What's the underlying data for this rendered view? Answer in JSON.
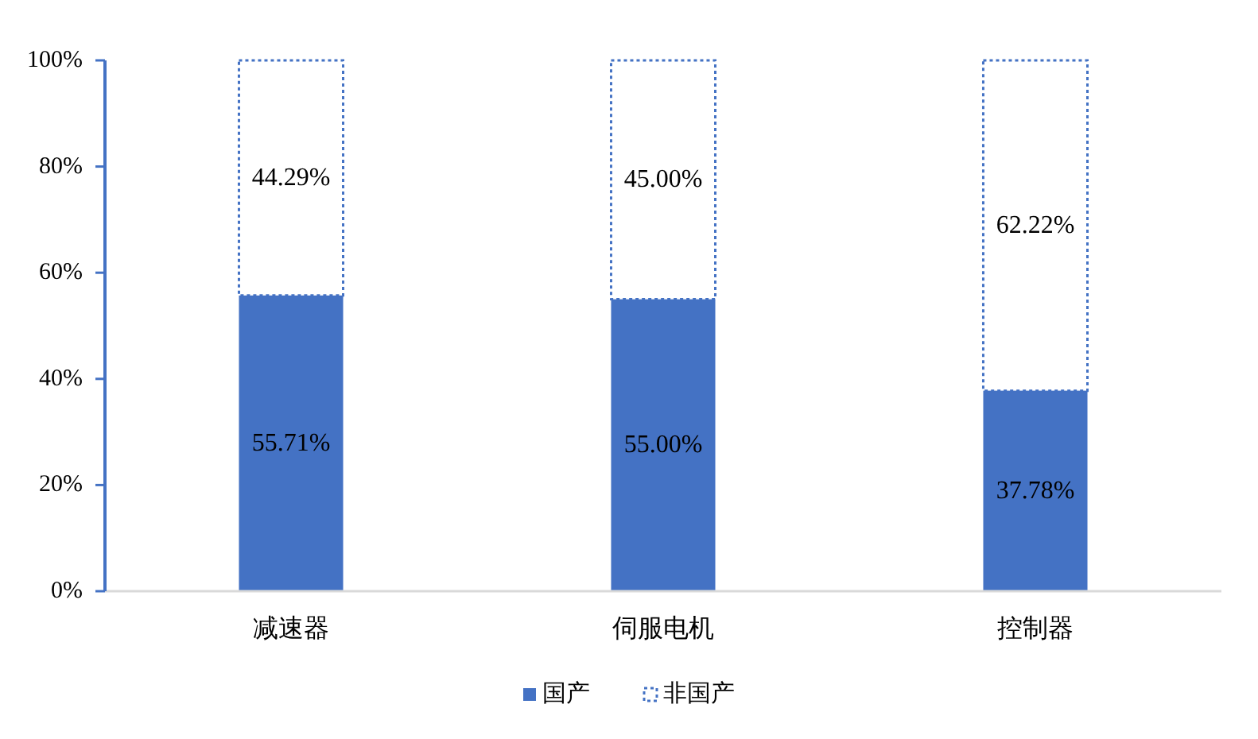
{
  "chart_data": {
    "type": "bar",
    "stacked": true,
    "categories": [
      "减速器",
      "伺服电机",
      "控制器"
    ],
    "series": [
      {
        "name": "国产",
        "color": "#4472c4",
        "values": [
          55.71,
          55.0,
          37.78
        ],
        "value_labels": [
          "55.71%",
          "55.00%",
          "37.78%"
        ]
      },
      {
        "name": "非国产",
        "color": "#4472c4",
        "line_style": "dotted",
        "values": [
          44.29,
          45.0,
          62.22
        ],
        "value_labels": [
          "44.29%",
          "45.00%",
          "62.22%"
        ]
      }
    ],
    "ylim": [
      0,
      100
    ],
    "yticks": [
      {
        "value": 0,
        "label": "0%"
      },
      {
        "value": 20,
        "label": "20%"
      },
      {
        "value": 40,
        "label": "40%"
      },
      {
        "value": 60,
        "label": "60%"
      },
      {
        "value": 80,
        "label": "80%"
      },
      {
        "value": 100,
        "label": "100%"
      }
    ],
    "legend": "bottom"
  }
}
